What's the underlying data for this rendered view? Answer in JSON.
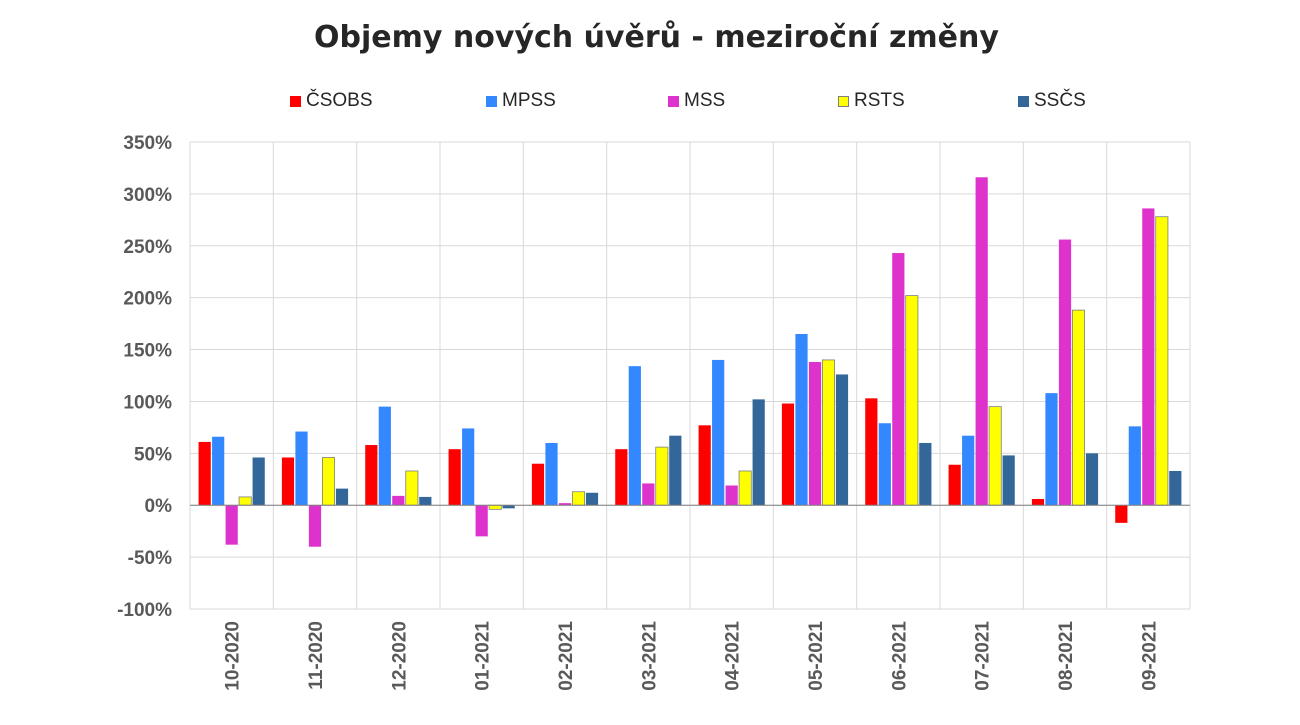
{
  "chart_data": {
    "type": "bar",
    "title": "Objemy nových úvěrů - meziroční změny",
    "xlabel": "",
    "ylabel": "",
    "ylim": [
      -1.0,
      3.5
    ],
    "yticks": [
      -1.0,
      -0.5,
      0.0,
      0.5,
      1.0,
      1.5,
      2.0,
      2.5,
      3.0,
      3.5
    ],
    "ytick_labels": [
      "-100%",
      "-50%",
      "0%",
      "50%",
      "100%",
      "150%",
      "200%",
      "250%",
      "300%",
      "350%"
    ],
    "grid": true,
    "legend_position": "top",
    "categories": [
      "10-2020",
      "11-2020",
      "12-2020",
      "01-2021",
      "02-2021",
      "03-2021",
      "04-2021",
      "05-2021",
      "06-2021",
      "07-2021",
      "08-2021",
      "09-2021"
    ],
    "series": [
      {
        "name": "ČSOBS",
        "color": "#ff0000",
        "values": [
          0.61,
          0.46,
          0.58,
          0.54,
          0.4,
          0.54,
          0.77,
          0.98,
          1.03,
          0.39,
          0.06,
          -0.17
        ]
      },
      {
        "name": "MPSS",
        "color": "#3388ff",
        "values": [
          0.66,
          0.71,
          0.95,
          0.74,
          0.6,
          1.34,
          1.4,
          1.65,
          0.79,
          0.67,
          1.08,
          0.76
        ]
      },
      {
        "name": "MSS",
        "color": "#dd33cc",
        "values": [
          -0.38,
          -0.4,
          0.09,
          -0.3,
          0.02,
          0.21,
          0.19,
          1.38,
          2.43,
          3.16,
          2.56,
          2.86
        ]
      },
      {
        "name": "RSTS",
        "color": "#ffff00",
        "values": [
          0.08,
          0.46,
          0.33,
          -0.04,
          0.13,
          0.56,
          0.33,
          1.4,
          2.02,
          0.95,
          1.88,
          2.78
        ]
      },
      {
        "name": "SSČS",
        "color": "#336699",
        "values": [
          0.46,
          0.16,
          0.08,
          -0.03,
          0.12,
          0.67,
          1.02,
          1.26,
          0.6,
          0.48,
          0.5,
          0.33
        ]
      }
    ]
  }
}
